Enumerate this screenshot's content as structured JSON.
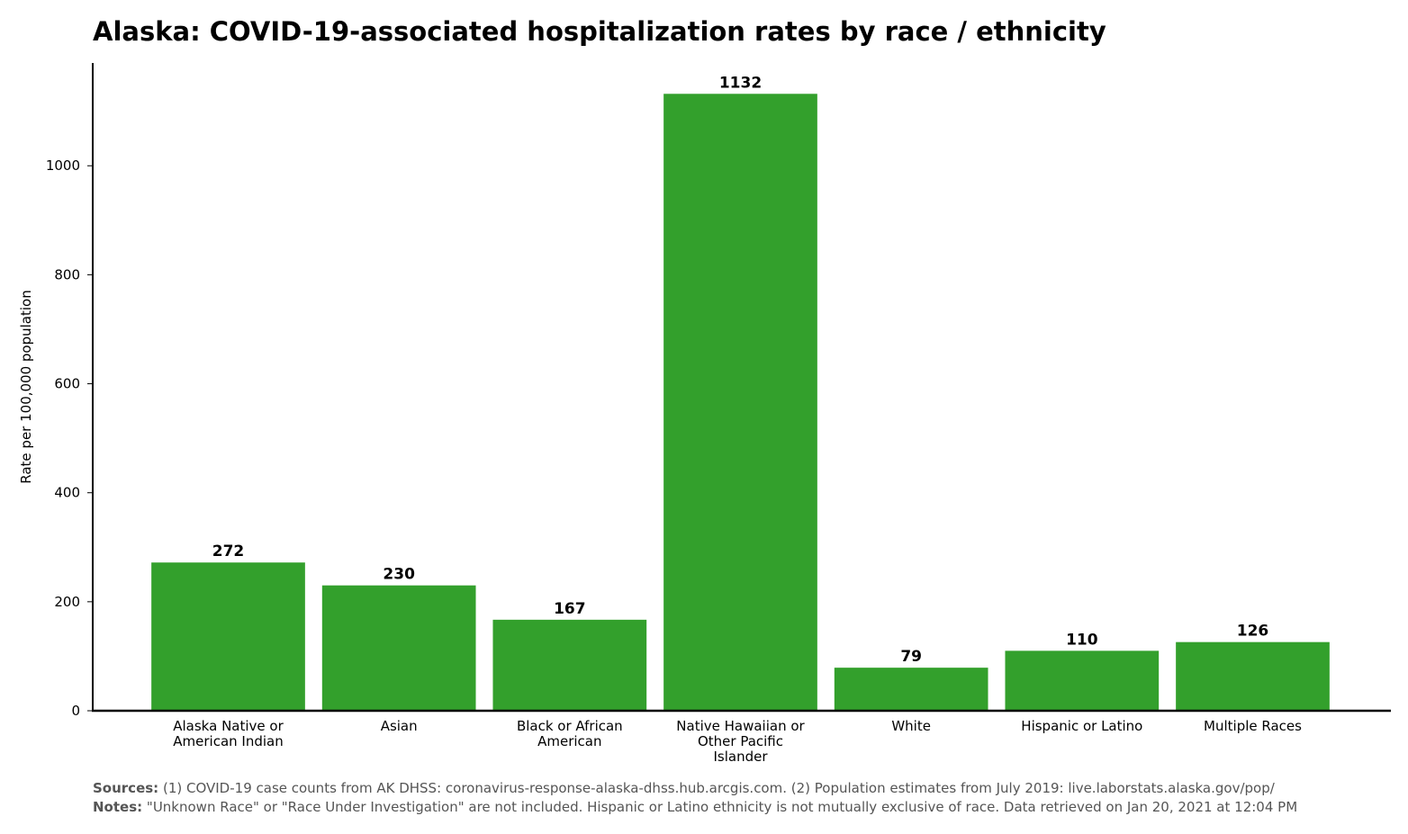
{
  "chart_data": {
    "type": "bar",
    "title": "Alaska: COVID-19-associated hospitalization rates by race / ethnicity",
    "xlabel": "",
    "ylabel": "Rate per 100,000 population",
    "categories": [
      [
        "Alaska Native or",
        "American Indian"
      ],
      [
        "Asian"
      ],
      [
        "Black or African",
        "American"
      ],
      [
        "Native Hawaiian or",
        "Other Pacific",
        "Islander"
      ],
      [
        "White"
      ],
      [
        "Hispanic or Latino"
      ],
      [
        "Multiple Races"
      ]
    ],
    "values": [
      272,
      230,
      167,
      1132,
      79,
      110,
      126
    ],
    "value_labels": [
      "272",
      "230",
      "167",
      "1132",
      "79",
      "110",
      "126"
    ],
    "yticks": [
      0,
      200,
      400,
      600,
      800,
      1000
    ],
    "ytick_labels": [
      "0",
      "200",
      "400",
      "600",
      "800",
      "1000"
    ],
    "ylim": [
      0,
      1188.6
    ],
    "bar_color": "#33a02c",
    "grid": false,
    "legend": "none"
  },
  "footer": {
    "sources_lead": "Sources:",
    "sources_text": "(1) COVID-19 case counts from AK DHSS: coronavirus-response-alaska-dhss.hub.arcgis.com. (2) Population estimates from July 2019: live.laborstats.alaska.gov/pop/",
    "notes_lead": "Notes:",
    "notes_text": "\"Unknown Race\" or \"Race Under Investigation\" are not included. Hispanic or Latino ethnicity is not mutually exclusive of race. Data retrieved on Jan 20, 2021 at 12:04 PM"
  }
}
